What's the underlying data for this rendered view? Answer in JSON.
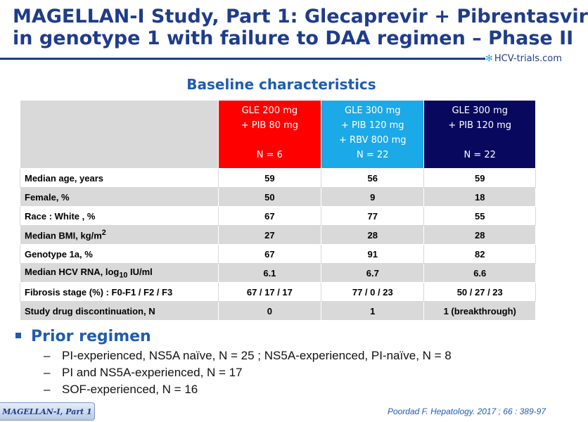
{
  "header": {
    "title_line1": "MAGELLAN-I Study, Part 1: Glecaprevir + Pibrentasvir",
    "title_line2": "in genotype 1 with failure to DAA regimen – Phase II",
    "logo_text": "HCV-trials.com",
    "accent_color": "#1f3c8c"
  },
  "subtitle": "Baseline characteristics",
  "table": {
    "columns": [
      {
        "line1": "GLE 200 mg",
        "line2": "+ PIB 80 mg",
        "line3": "",
        "line4": "N = 6",
        "color": "#ff0000"
      },
      {
        "line1": "GLE 300 mg",
        "line2": "+ PIB 120 mg",
        "line3": "+ RBV 800 mg",
        "line4": "N = 22",
        "color": "#1ca9e8"
      },
      {
        "line1": "GLE 300 mg",
        "line2": "+ PIB 120 mg",
        "line3": "",
        "line4": "N = 22",
        "color": "#08085e"
      }
    ],
    "rows": [
      {
        "label": "Median age, years",
        "values": [
          "59",
          "56",
          "59"
        ]
      },
      {
        "label": "Female, %",
        "values": [
          "50",
          "9",
          "18"
        ]
      },
      {
        "label": "Race : White , %",
        "values": [
          "67",
          "77",
          "55"
        ]
      },
      {
        "label_pre": "Median BMI, kg/m",
        "label_sup": "2",
        "label_post": "",
        "values": [
          "27",
          "28",
          "28"
        ]
      },
      {
        "label": "Genotype 1a, %",
        "values": [
          "67",
          "91",
          "82"
        ]
      },
      {
        "label_pre": "Median HCV RNA,  log",
        "label_sub": "10",
        "label_post": " IU/ml",
        "values": [
          "6.1",
          "6.7",
          "6.6"
        ]
      },
      {
        "label": "Fibrosis stage (%) : F0-F1 / F2 / F3",
        "values": [
          "67 / 17 / 17",
          "77 / 0 / 23",
          "50 / 27 / 23"
        ]
      },
      {
        "label": "Study drug discontinuation, N",
        "values": [
          "0",
          "1",
          "1 (breakthrough)"
        ]
      }
    ]
  },
  "prior": {
    "heading": "Prior regimen",
    "items": [
      "PI-experienced, NS5A naïve, N = 25 ; NS5A-experienced, PI-naïve, N = 8",
      "PI and NS5A-experienced, N = 17",
      "SOF-experienced, N = 16"
    ],
    "dash": "–"
  },
  "footer": {
    "study_tab": "MAGELLAN-I,  Part 1",
    "reference": "Poordad F. Hepatology. 2017 ; 66 : 389-97"
  }
}
